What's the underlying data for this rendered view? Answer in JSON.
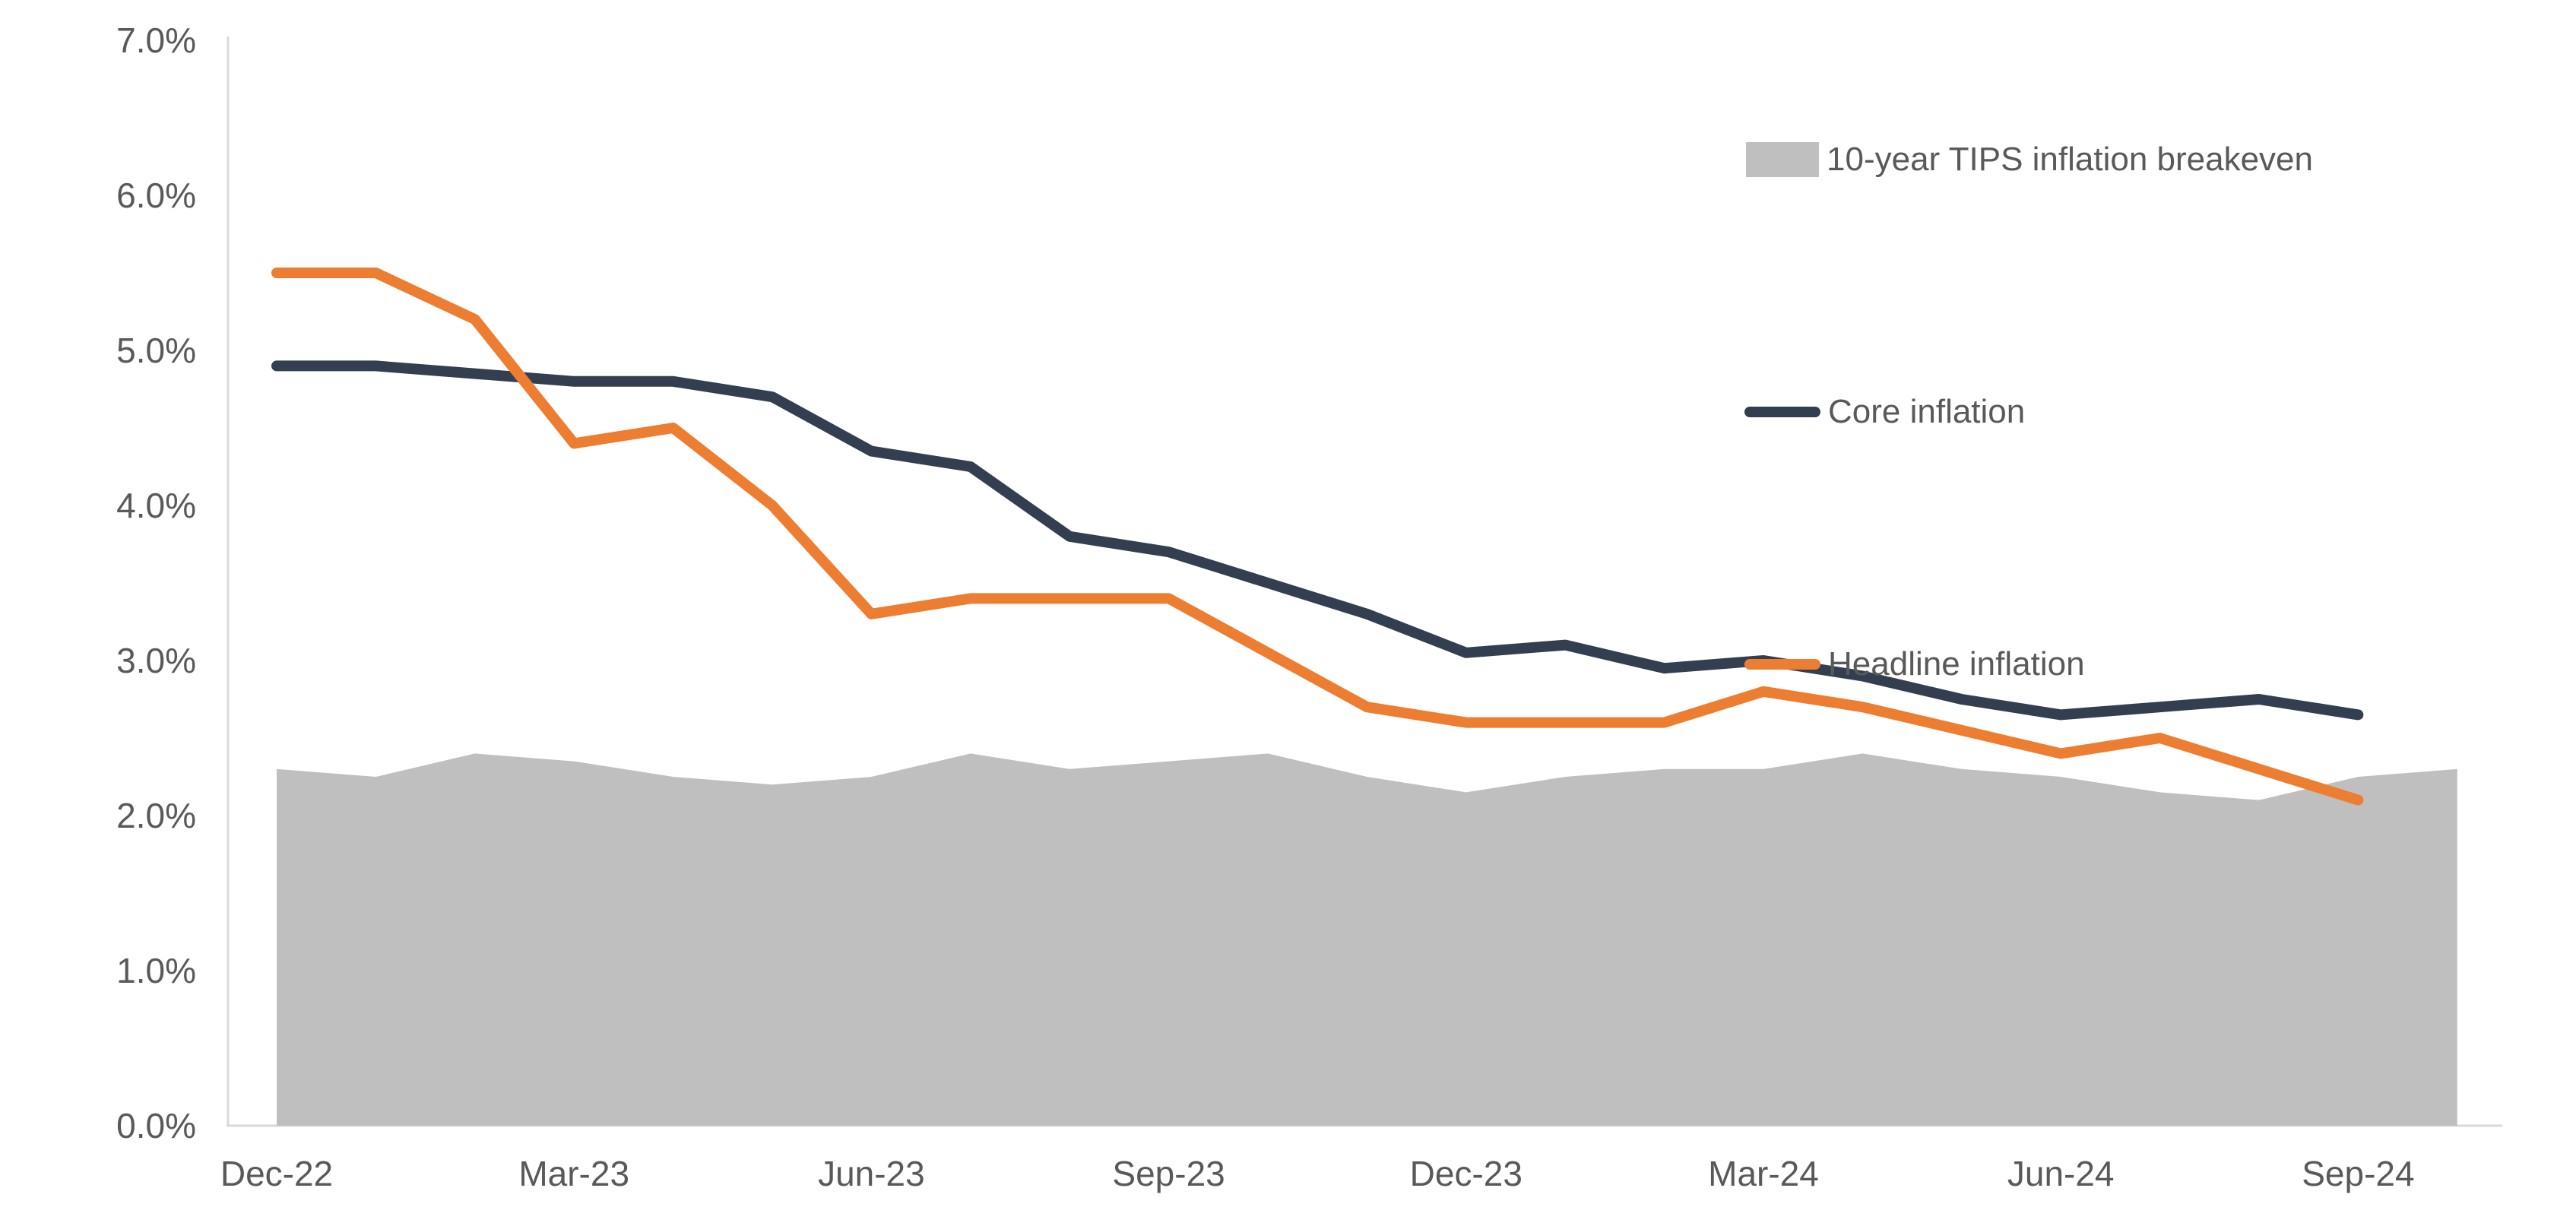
{
  "chart_data": {
    "type": "line",
    "title": "",
    "xlabel": "",
    "ylabel": "",
    "ylim": [
      0,
      7
    ],
    "grid": false,
    "legend_position": "upper-right",
    "y_ticks": [
      "0.0%",
      "1.0%",
      "2.0%",
      "3.0%",
      "4.0%",
      "5.0%",
      "6.0%",
      "7.0%"
    ],
    "x_tick_labels": [
      "Dec-22",
      "Mar-23",
      "Jun-23",
      "Sep-23",
      "Dec-23",
      "Mar-24",
      "Jun-24",
      "Sep-24"
    ],
    "x_tick_month_indices": [
      0,
      3,
      6,
      9,
      12,
      15,
      18,
      21
    ],
    "months": [
      "Dec-22",
      "Jan-23",
      "Feb-23",
      "Mar-23",
      "Apr-23",
      "May-23",
      "Jun-23",
      "Jul-23",
      "Aug-23",
      "Sep-23",
      "Oct-23",
      "Nov-23",
      "Dec-23",
      "Jan-24",
      "Feb-24",
      "Mar-24",
      "Apr-24",
      "May-24",
      "Jun-24",
      "Jul-24",
      "Aug-24",
      "Sep-24"
    ],
    "series": [
      {
        "name": "10-year TIPS inflation breakeven",
        "type": "area",
        "color": "#BFBFBF",
        "months": [
          "Dec-22",
          "Jan-23",
          "Feb-23",
          "Mar-23",
          "Apr-23",
          "May-23",
          "Jun-23",
          "Jul-23",
          "Aug-23",
          "Sep-23",
          "Oct-23",
          "Nov-23",
          "Dec-23",
          "Jan-24",
          "Feb-24",
          "Mar-24",
          "Apr-24",
          "May-24",
          "Jun-24",
          "Jul-24",
          "Aug-24",
          "Sep-24",
          "Oct-24"
        ],
        "values": [
          2.3,
          2.25,
          2.4,
          2.35,
          2.25,
          2.2,
          2.25,
          2.4,
          2.3,
          2.35,
          2.4,
          2.25,
          2.15,
          2.25,
          2.3,
          2.3,
          2.4,
          2.3,
          2.25,
          2.15,
          2.1,
          2.25,
          2.3
        ]
      },
      {
        "name": "Core inflation",
        "type": "line",
        "color": "#333F50",
        "values": [
          4.9,
          4.9,
          4.85,
          4.8,
          4.8,
          4.7,
          4.35,
          4.25,
          3.8,
          3.7,
          3.5,
          3.3,
          3.05,
          3.1,
          2.95,
          3.0,
          2.9,
          2.75,
          2.65,
          2.7,
          2.75,
          2.65
        ]
      },
      {
        "name": "Headline inflation",
        "type": "line",
        "color": "#ED7D31",
        "values": [
          5.5,
          5.5,
          5.2,
          4.4,
          4.5,
          4.0,
          3.3,
          3.4,
          3.4,
          3.4,
          3.05,
          2.7,
          2.6,
          2.6,
          2.6,
          2.8,
          2.7,
          2.55,
          2.4,
          2.5,
          2.3,
          2.1
        ]
      }
    ],
    "axis_color": "#D9D9D9",
    "tick_text_color": "#595959"
  }
}
